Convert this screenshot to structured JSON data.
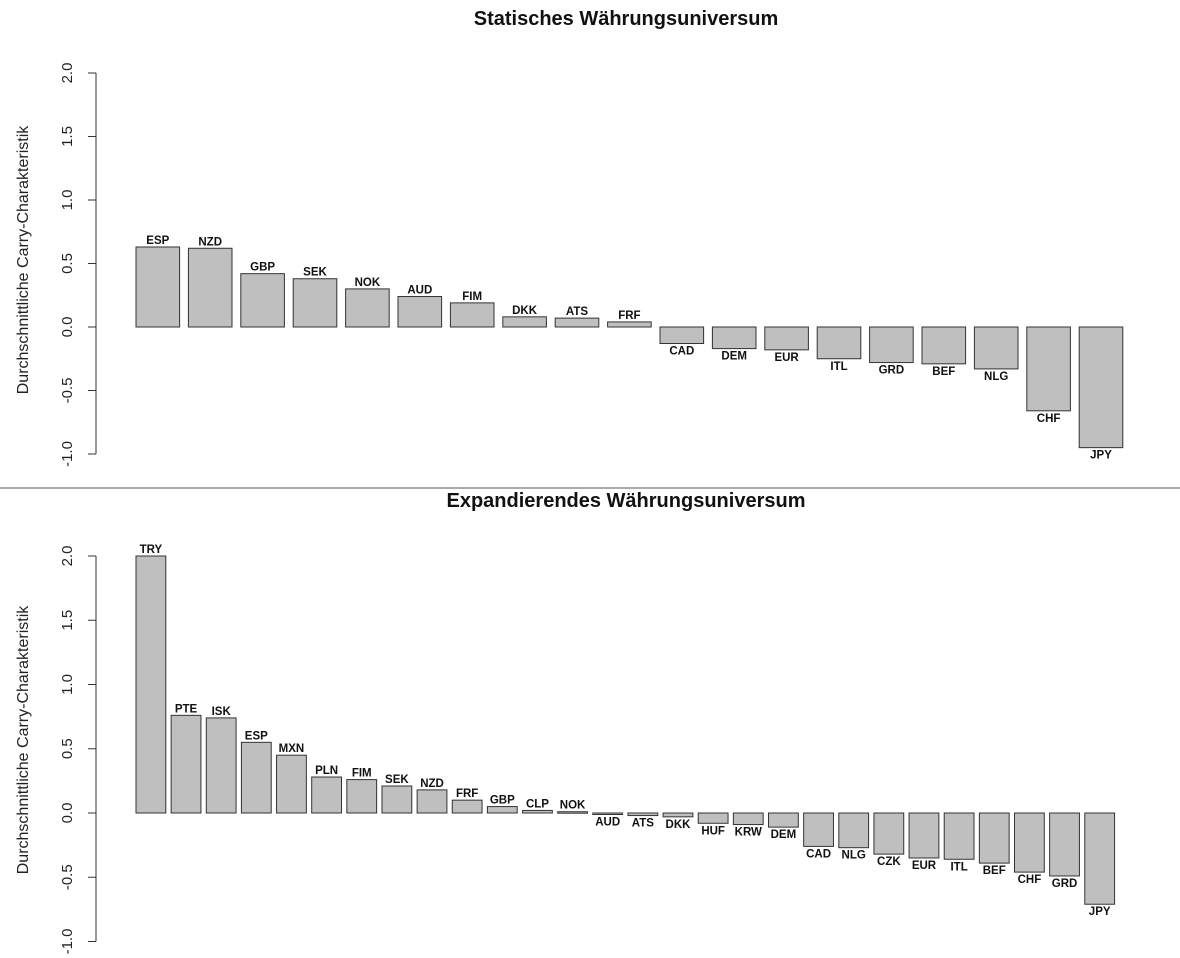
{
  "chart_data": [
    {
      "type": "bar",
      "title": "Statisches Währungsuniversum",
      "ylabel": "Durchschnittliche Carry-Charakteristik",
      "ylim": [
        -1.0,
        2.0
      ],
      "yticks": [
        "-1.0",
        "-0.5",
        "0.0",
        "0.5",
        "1.0",
        "1.5",
        "2.0"
      ],
      "categories": [
        "ESP",
        "NZD",
        "GBP",
        "SEK",
        "NOK",
        "AUD",
        "FIM",
        "DKK",
        "ATS",
        "FRF",
        "CAD",
        "DEM",
        "EUR",
        "ITL",
        "GRD",
        "BEF",
        "NLG",
        "CHF",
        "JPY"
      ],
      "values": [
        0.63,
        0.62,
        0.42,
        0.38,
        0.3,
        0.24,
        0.19,
        0.08,
        0.07,
        0.04,
        -0.13,
        -0.17,
        -0.18,
        -0.25,
        -0.28,
        -0.29,
        -0.33,
        -0.66,
        -0.95
      ]
    },
    {
      "type": "bar",
      "title": "Expandierendes Währungsuniversum",
      "ylabel": "Durchschnittliche Carry-Charakteristik",
      "ylim": [
        -1.0,
        2.0
      ],
      "yticks": [
        "-1.0",
        "-0.5",
        "0.0",
        "0.5",
        "1.0",
        "1.5",
        "2.0"
      ],
      "categories": [
        "TRY",
        "PTE",
        "ISK",
        "ESP",
        "MXN",
        "PLN",
        "FIM",
        "SEK",
        "NZD",
        "FRF",
        "GBP",
        "CLP",
        "NOK",
        "AUD",
        "ATS",
        "DKK",
        "HUF",
        "KRW",
        "DEM",
        "CAD",
        "NLG",
        "CZK",
        "EUR",
        "ITL",
        "BEF",
        "CHF",
        "GRD",
        "JPY"
      ],
      "values": [
        2.0,
        0.76,
        0.74,
        0.55,
        0.45,
        0.28,
        0.26,
        0.21,
        0.18,
        0.1,
        0.05,
        0.02,
        0.01,
        -0.01,
        -0.02,
        -0.03,
        -0.08,
        -0.09,
        -0.11,
        -0.26,
        -0.27,
        -0.32,
        -0.35,
        -0.36,
        -0.39,
        -0.46,
        -0.49,
        -0.71
      ]
    }
  ]
}
